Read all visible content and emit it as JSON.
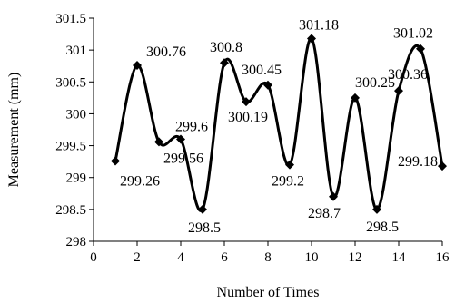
{
  "chart_data": {
    "type": "line",
    "smoothed": true,
    "xlabel": "Number of Times",
    "ylabel": "Measurement (mm)",
    "xlim": [
      0,
      16
    ],
    "ylim": [
      298,
      301.5
    ],
    "xticks": [
      0,
      2,
      4,
      6,
      8,
      10,
      12,
      14,
      16
    ],
    "yticks": [
      298,
      298.5,
      299,
      299.5,
      300,
      300.5,
      301,
      301.5
    ],
    "xtick_labels": [
      "0",
      "2",
      "4",
      "6",
      "8",
      "10",
      "12",
      "14",
      "16"
    ],
    "ytick_labels": [
      "298",
      "298.5",
      "299",
      "299.5",
      "300",
      "300.5",
      "301",
      "301.5"
    ],
    "grid": false,
    "legend": "none",
    "marker": "diamond",
    "series": [
      {
        "color": "#000000",
        "x": [
          1,
          2,
          3,
          4,
          5,
          6,
          7,
          8,
          9,
          10,
          11,
          12,
          13,
          14,
          15,
          16
        ],
        "y": [
          299.26,
          300.76,
          299.56,
          299.6,
          298.5,
          300.8,
          300.19,
          300.45,
          299.2,
          301.18,
          298.7,
          300.25,
          298.5,
          300.36,
          301.02,
          299.18
        ]
      }
    ],
    "data_labels": [
      {
        "x": 1,
        "text": "299.26"
      },
      {
        "x": 2,
        "text": "300.76"
      },
      {
        "x": 3,
        "text": "299.56"
      },
      {
        "x": 4,
        "text": "299.6"
      },
      {
        "x": 5,
        "text": "298.5"
      },
      {
        "x": 6,
        "text": "300.8"
      },
      {
        "x": 7,
        "text": "300.19"
      },
      {
        "x": 8,
        "text": "300.45"
      },
      {
        "x": 9,
        "text": "299.2"
      },
      {
        "x": 10,
        "text": "301.18"
      },
      {
        "x": 11,
        "text": "298.7"
      },
      {
        "x": 12,
        "text": "300.25"
      },
      {
        "x": 13,
        "text": "298.5"
      },
      {
        "x": 14,
        "text": "300.36"
      },
      {
        "x": 15,
        "text": "301.02"
      },
      {
        "x": 16,
        "text": "299.18"
      }
    ]
  }
}
